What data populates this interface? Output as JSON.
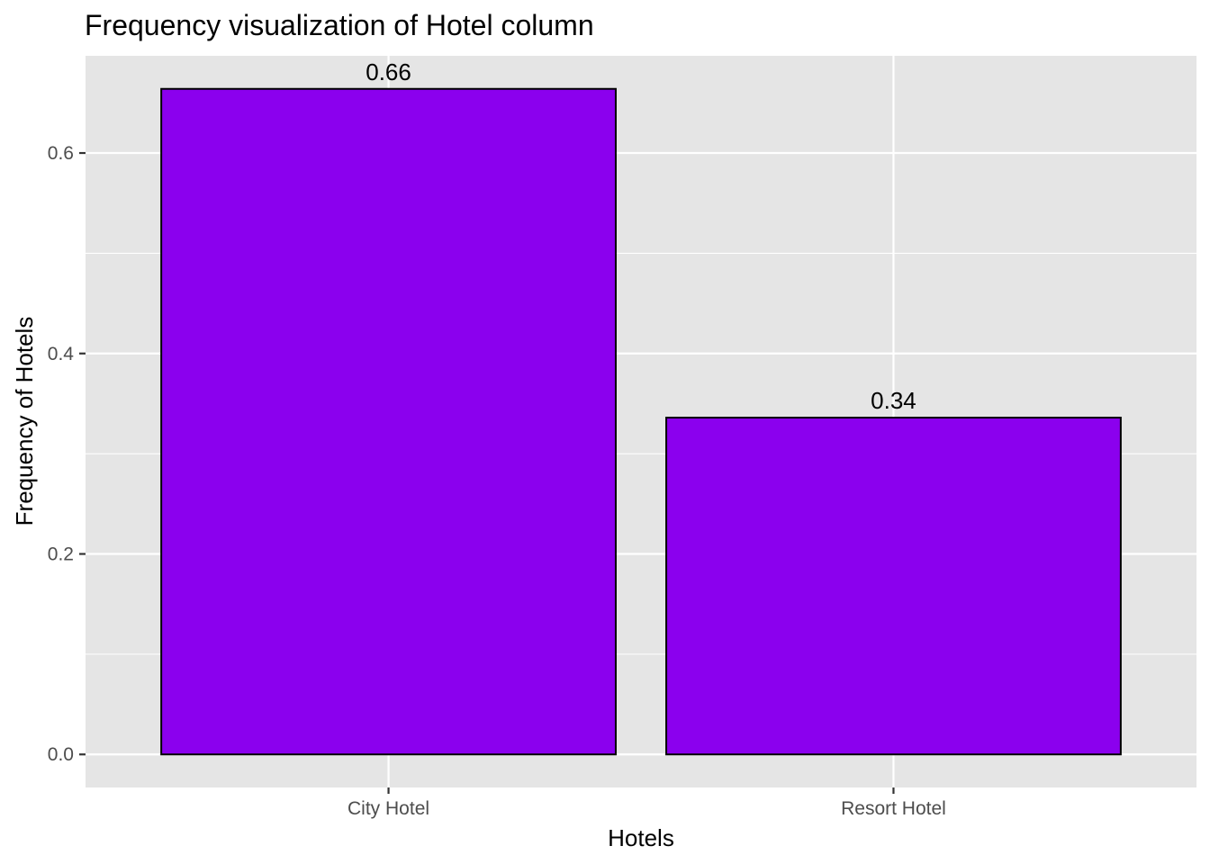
{
  "chart_data": {
    "type": "bar",
    "title": "Frequency visualization of Hotel column",
    "xlabel": "Hotels",
    "ylabel": "Frequency of Hotels",
    "categories": [
      "City Hotel",
      "Resort Hotel"
    ],
    "values": [
      0.664,
      0.336
    ],
    "data_labels": [
      "0.66",
      "0.34"
    ],
    "ylim": [
      -0.033,
      0.697
    ],
    "y_ticks": [
      0.0,
      0.2,
      0.4,
      0.6
    ],
    "y_tick_labels": [
      "0.0",
      "0.2",
      "0.4",
      "0.6"
    ],
    "grid": true,
    "legend": "none",
    "colors": {
      "bar_fill": "#8b00ee",
      "bar_border": "#000000",
      "panel_background": "#e5e5e5",
      "grid": "#ffffff"
    }
  }
}
